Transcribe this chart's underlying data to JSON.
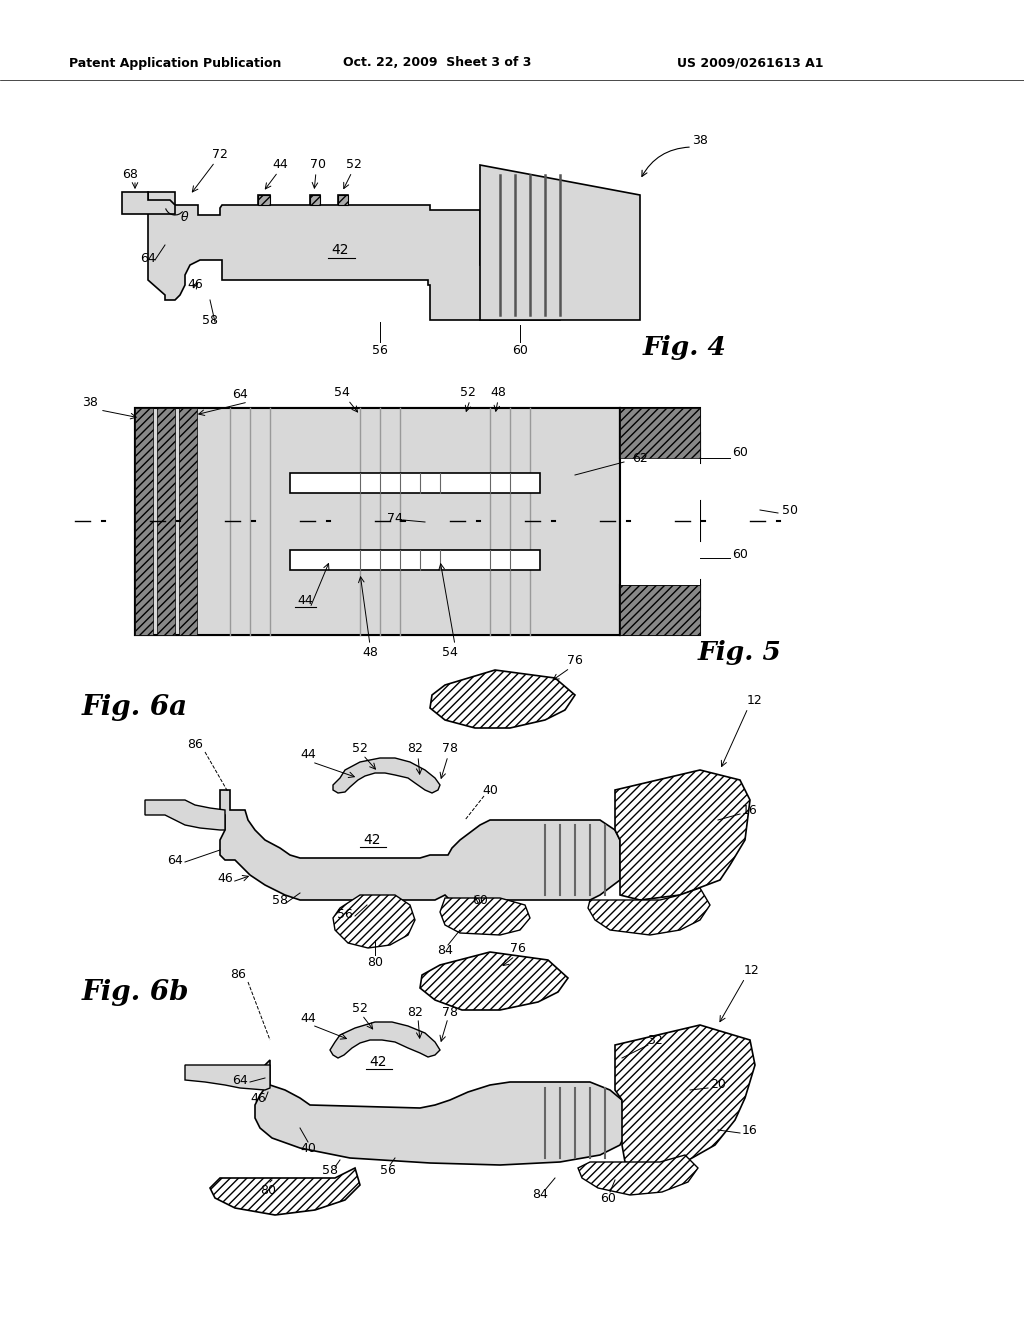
{
  "title_left": "Patent Application Publication",
  "title_center": "Oct. 22, 2009  Sheet 3 of 3",
  "title_right": "US 2009/0261613 A1",
  "background_color": "#ffffff",
  "stipple_color": "#d8d8d8",
  "line_color": "#000000",
  "fig4_label": "Fig. 4",
  "fig5_label": "Fig. 5",
  "fig6a_label": "Fig. 6a",
  "fig6b_label": "Fig. 6b"
}
